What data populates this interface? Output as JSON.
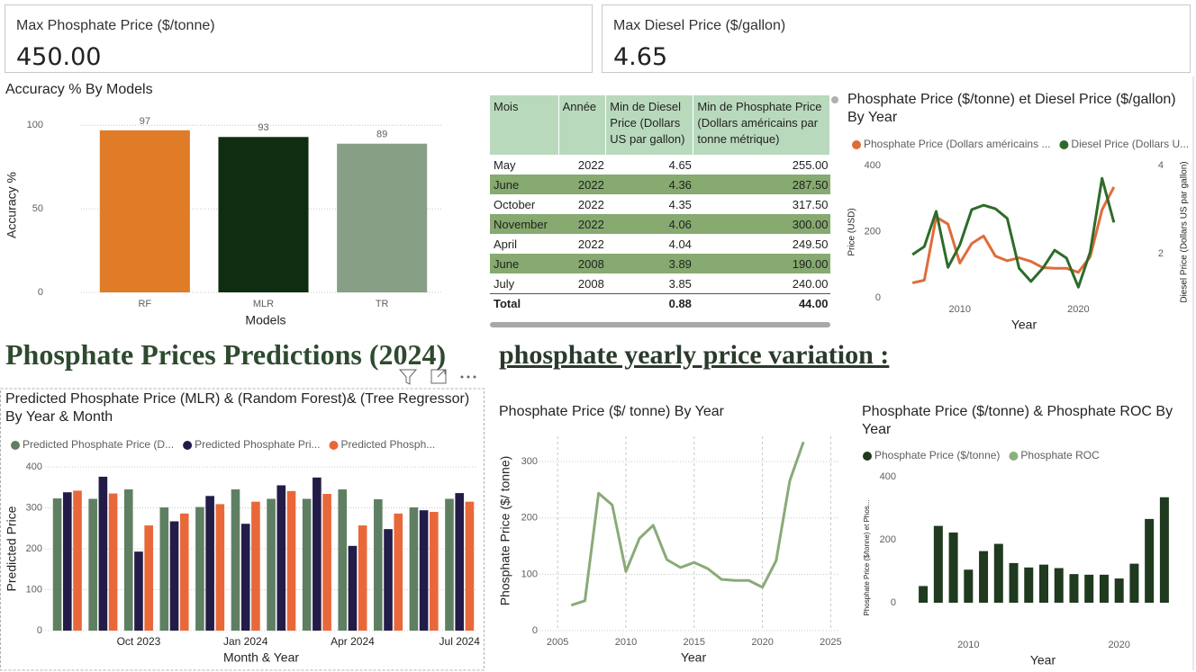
{
  "cards": [
    {
      "label": "Max Phosphate Price ($/tonne)",
      "value": "450.00"
    },
    {
      "label": "Max Diesel Price ($/gallon)",
      "value": "4.65"
    }
  ],
  "table": {
    "columns": [
      "Mois",
      "Année",
      "Min de Diesel Price (Dollars US par gallon)",
      "Min de Phosphate Price (Dollars américains par tonne métrique)"
    ],
    "rows": [
      [
        "May",
        "2022",
        "4.65",
        "255.00"
      ],
      [
        "June",
        "2022",
        "4.36",
        "287.50"
      ],
      [
        "October",
        "2022",
        "4.35",
        "317.50"
      ],
      [
        "November",
        "2022",
        "4.06",
        "300.00"
      ],
      [
        "April",
        "2022",
        "4.04",
        "249.50"
      ],
      [
        "June",
        "2008",
        "3.89",
        "190.00"
      ],
      [
        "July",
        "2008",
        "3.85",
        "240.00"
      ]
    ],
    "total": {
      "label": "Total",
      "diesel": "0.88",
      "phosphate": "44.00"
    }
  },
  "headings": [
    "Phosphate Prices Predictions (2024)",
    "phosphate yearly price variation :"
  ],
  "chart_data": [
    {
      "type": "bar",
      "title": "Accuracy % By Models",
      "categories": [
        "RF",
        "MLR",
        "TR"
      ],
      "values": [
        97,
        93,
        89
      ],
      "colors": [
        "#e07b28",
        "#0f2d11",
        "#87a085"
      ],
      "xlabel": "Models",
      "ylabel": "Accuracy %",
      "ylim": [
        0,
        105
      ],
      "yticks": [
        0,
        50,
        100
      ],
      "grid": true
    },
    {
      "type": "line",
      "title": "Phosphate Price ($/tonne) et Diesel Price ($/gallon) By Year",
      "x": [
        2006,
        2007,
        2008,
        2009,
        2010,
        2011,
        2012,
        2013,
        2014,
        2015,
        2016,
        2017,
        2018,
        2019,
        2020,
        2021,
        2022,
        2023
      ],
      "series": [
        {
          "name": "Phosphate Price (Dollars américains ...",
          "color": "#e06c38",
          "values": [
            45,
            53,
            244,
            223,
            105,
            164,
            187,
            126,
            112,
            121,
            110,
            91,
            89,
            89,
            77,
            124,
            266,
            335
          ]
        },
        {
          "name": "Diesel Price (Dollars U...",
          "color": "#2e6b2a",
          "axis": "y2",
          "values": [
            1.98,
            2.16,
            2.96,
            1.69,
            2.2,
            3.0,
            3.1,
            3.02,
            2.8,
            1.67,
            1.37,
            1.67,
            2.08,
            1.9,
            1.24,
            2.04,
            3.71,
            2.71
          ]
        }
      ],
      "xlabel": "Year",
      "ylabel": "Price (USD)",
      "y2label": "Diesel Price (Dollars US par gallon)",
      "xlim": [
        2005,
        2024
      ],
      "xticks": [
        2010,
        2020
      ],
      "ylim": [
        0,
        400
      ],
      "yticks": [
        0,
        200,
        400
      ],
      "y2lim": [
        1,
        4
      ],
      "y2ticks": [
        2,
        4
      ],
      "grid": false
    },
    {
      "type": "bar",
      "title": "Predicted Phosphate Price (MLR) & (Random Forest)& (Tree Regressor) By Year & Month",
      "categories": [
        null,
        null,
        "Oct 2023",
        null,
        null,
        "Jan 2024",
        null,
        null,
        "Apr 2024",
        null,
        null,
        "Jul 2024"
      ],
      "series": [
        {
          "name": "Predicted Phosphate Price (D...",
          "color": "#5f7f62",
          "values": [
            323,
            322,
            345,
            301,
            302,
            345,
            322,
            322,
            345,
            321,
            301,
            322
          ]
        },
        {
          "name": "Predicted Phosphate Pri...",
          "color": "#231c48",
          "values": [
            338,
            376,
            193,
            267,
            329,
            261,
            355,
            374,
            207,
            248,
            294,
            336
          ]
        },
        {
          "name": "Predicted Phosph...",
          "color": "#e8683a",
          "values": [
            342,
            335,
            257,
            286,
            309,
            315,
            341,
            334,
            257,
            286,
            290,
            315
          ]
        }
      ],
      "xlabel": "Month & Year",
      "ylabel": "Predicted Price",
      "ylim": [
        0,
        400
      ],
      "yticks": [
        0,
        100,
        200,
        300,
        400
      ],
      "grid": true
    },
    {
      "type": "line",
      "title": "Phosphate Price ($/ tonne) By Year",
      "x": [
        2006,
        2007,
        2008,
        2009,
        2010,
        2011,
        2012,
        2013,
        2014,
        2015,
        2016,
        2017,
        2018,
        2019,
        2020,
        2021,
        2022,
        2023
      ],
      "values": [
        45,
        53,
        244,
        223,
        105,
        164,
        187,
        126,
        112,
        121,
        110,
        91,
        89,
        89,
        77,
        124,
        266,
        335
      ],
      "color": "#8aaa78",
      "xlabel": "Year",
      "ylabel": "Phosphate Price ($/ tonne)",
      "xlim": [
        2004,
        2025.5
      ],
      "xticks": [
        2005,
        2010,
        2015,
        2020,
        2025
      ],
      "ylim": [
        0,
        345
      ],
      "yticks": [
        0,
        100,
        200,
        300
      ],
      "grid": true
    },
    {
      "type": "bar",
      "title": "Phosphate Price ($/tonne) & Phosphate ROC By Year",
      "x": [
        2007,
        2008,
        2009,
        2010,
        2011,
        2012,
        2013,
        2014,
        2015,
        2016,
        2017,
        2018,
        2019,
        2020,
        2021,
        2022,
        2023
      ],
      "series": [
        {
          "name": "Phosphate Price ($/tonne)",
          "color": "#1f3a1f",
          "values": [
            53,
            244,
            223,
            105,
            164,
            187,
            126,
            112,
            121,
            110,
            91,
            89,
            89,
            77,
            124,
            266,
            335
          ]
        },
        {
          "name": "Phosphate ROC",
          "color": "#8bb07f"
        }
      ],
      "xlabel": "Year",
      "ylabel": "Phosphate Price ($/tonne) et Phos...",
      "xlim": [
        2005.5,
        2024.5
      ],
      "xticks": [
        2010,
        2020
      ],
      "ylim": [
        0,
        400
      ],
      "yticks": [
        0,
        200,
        400
      ],
      "grid": false
    }
  ]
}
